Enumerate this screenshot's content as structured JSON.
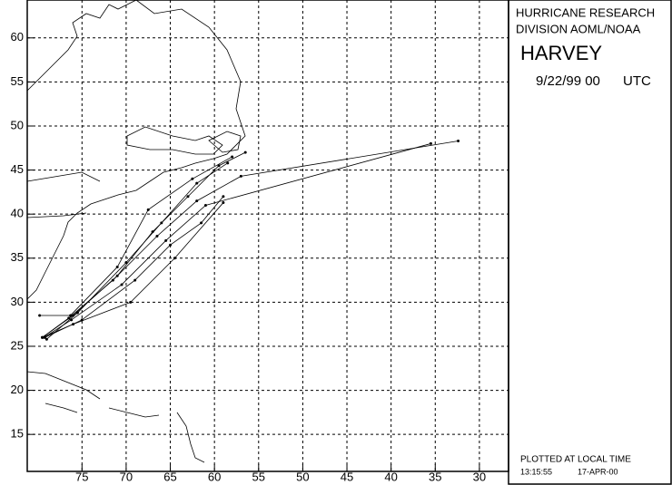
{
  "chart_data": {
    "type": "track-map",
    "panel": {
      "org_line1": "HURRICANE RESEARCH",
      "org_line2": "DIVISION AOML/NOAA",
      "storm": "HARVEY",
      "date": "9/22/99 00",
      "zone": "UTC",
      "plotted": "PLOTTED AT LOCAL TIME",
      "time": "13:15:55",
      "run_date": "17-APR-00"
    },
    "xlim": [
      81.2,
      26.7
    ],
    "ylim": [
      10.8,
      64.3
    ],
    "xticks": [
      75,
      70,
      65,
      60,
      55,
      50,
      45,
      40,
      35,
      30
    ],
    "yticks": [
      15,
      20,
      25,
      30,
      35,
      40,
      45,
      50,
      55,
      60
    ],
    "grid": true,
    "color": "#000000",
    "series": [
      {
        "x": [
          79.5,
          76.0,
          71.0,
          67.0,
          63.0,
          59.5,
          56.5
        ],
        "y": [
          26.0,
          28.5,
          33.0,
          38.0,
          42.0,
          45.5,
          47.0
        ]
      },
      {
        "x": [
          79.5,
          76.5,
          71.5,
          66.5,
          62.0,
          57.0,
          32.4
        ],
        "y": [
          26.0,
          28.2,
          32.5,
          37.5,
          41.5,
          44.3,
          48.3
        ]
      },
      {
        "x": [
          79.3,
          76.2,
          70.5,
          65.5,
          61.0,
          35.5
        ],
        "y": [
          26.0,
          28.0,
          32.0,
          37.0,
          41.0,
          48.0
        ]
      },
      {
        "x": [
          79.5,
          76.0,
          69.5,
          64.5,
          59.0
        ],
        "y": [
          26.0,
          27.5,
          30.0,
          35.0,
          41.3
        ]
      },
      {
        "x": [
          79.8,
          76.3,
          71.0,
          67.5,
          62.5,
          58.0
        ],
        "y": [
          28.5,
          28.5,
          34.0,
          40.5,
          44.0,
          46.5
        ]
      },
      {
        "x": [
          79.0,
          75.5,
          70.0,
          66.0,
          62.0,
          58.5
        ],
        "y": [
          25.8,
          28.8,
          34.5,
          39.0,
          43.5,
          45.8
        ]
      },
      {
        "x": [
          79.2,
          75.0,
          69.0,
          65.0,
          61.5,
          59.0
        ],
        "y": [
          26.0,
          28.0,
          32.5,
          36.5,
          39.0,
          42.0
        ]
      }
    ]
  }
}
